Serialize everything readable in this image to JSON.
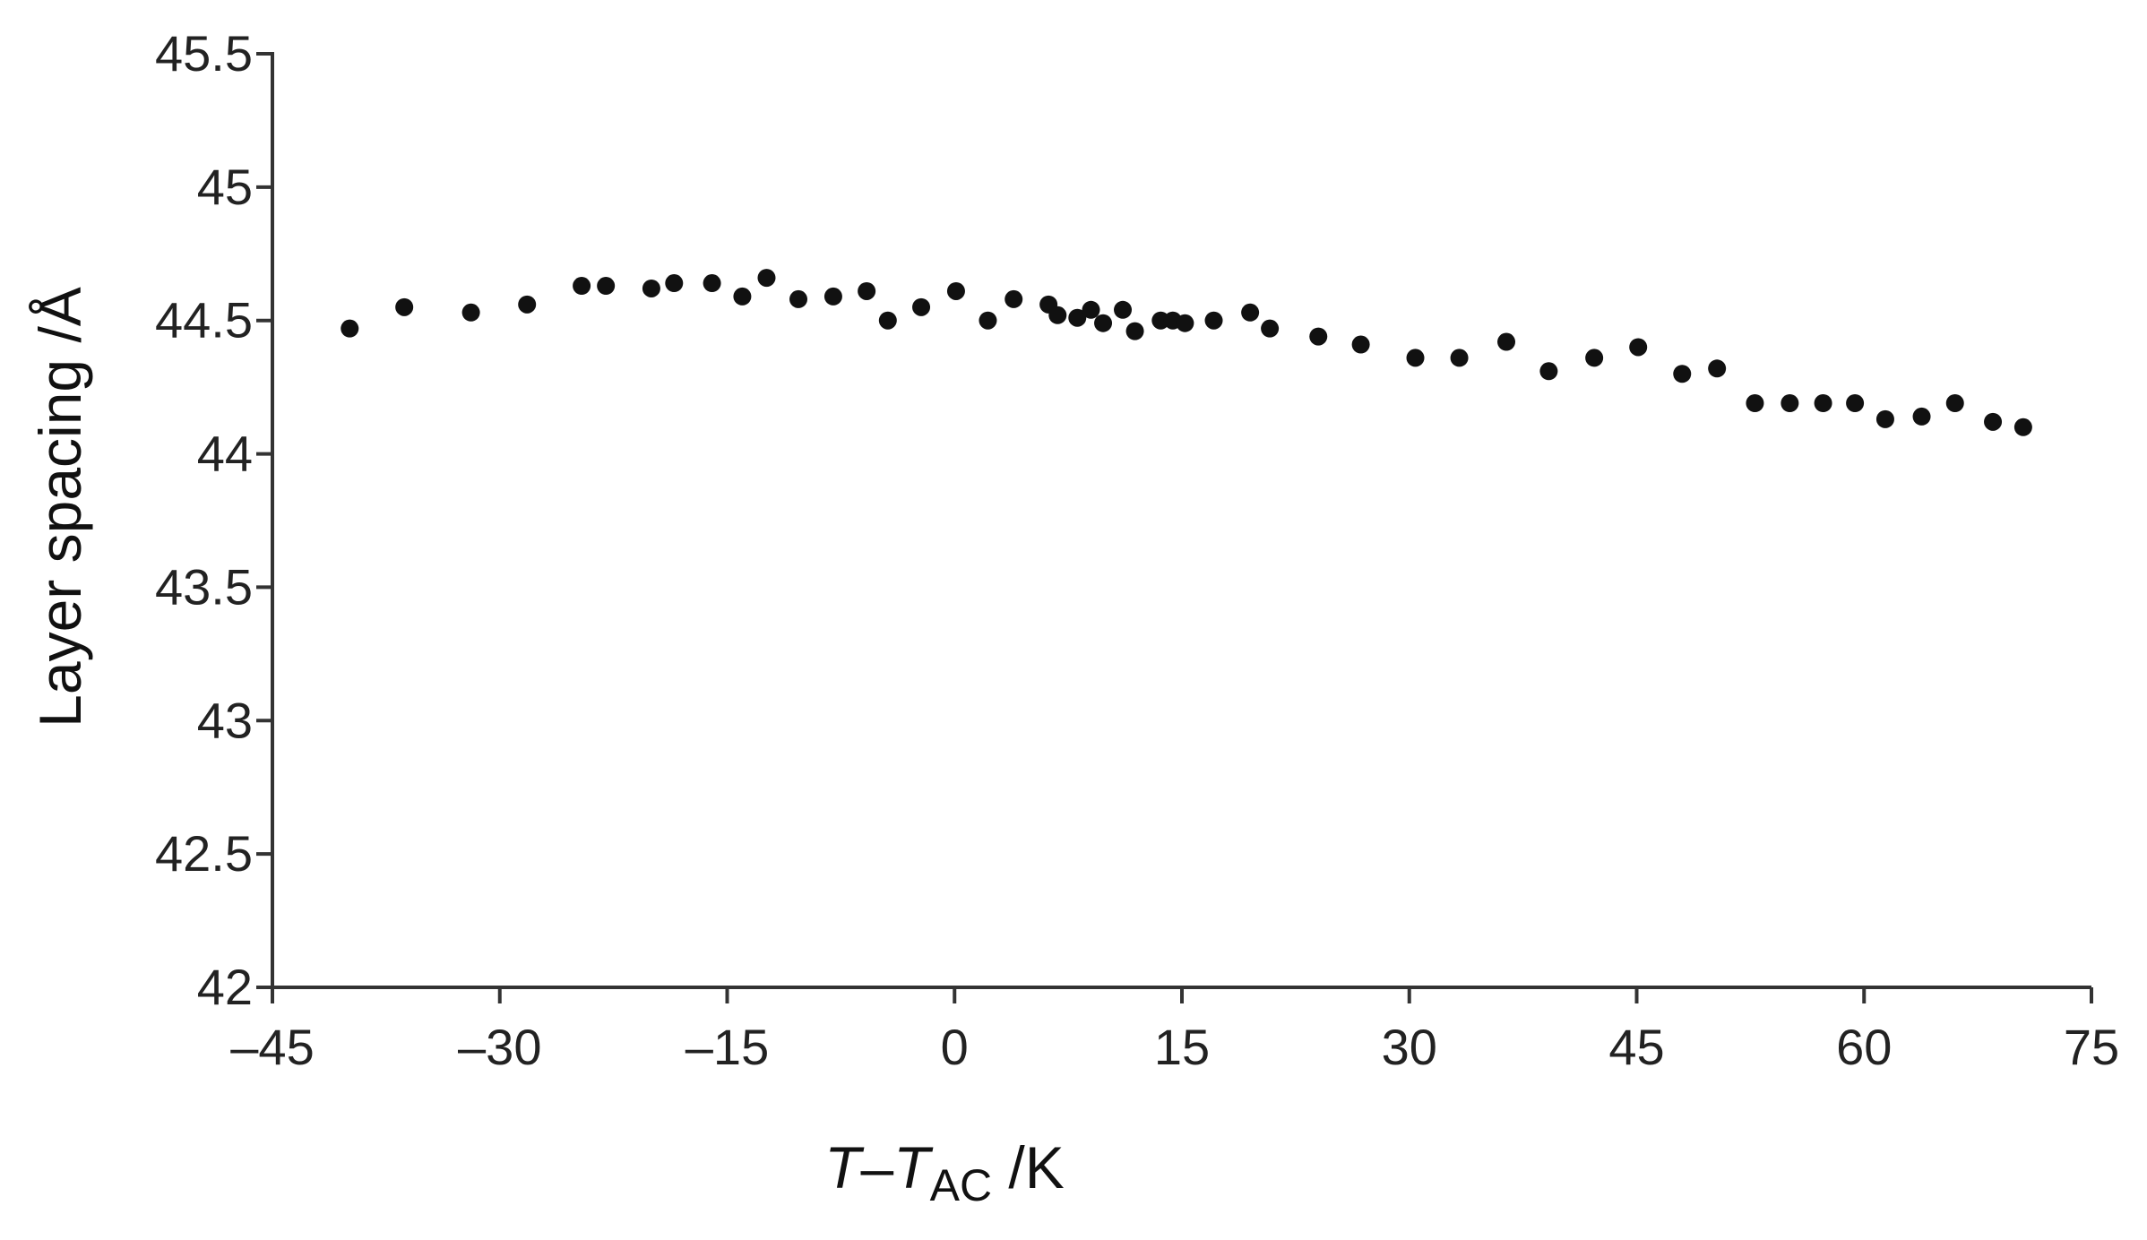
{
  "chart_data": {
    "type": "scatter",
    "title": "",
    "xlabel": {
      "var": "T",
      "dash": "–",
      "var2": "T",
      "sub": "AC",
      "unit": " /K"
    },
    "ylabel": "Layer spacing /Å",
    "xlim": [
      -45,
      75
    ],
    "ylim": [
      42,
      45.5
    ],
    "xticks": [
      "–45",
      "–30",
      "–15",
      "0",
      "15",
      "30",
      "45",
      "60",
      "75"
    ],
    "xtick_values": [
      -45,
      -30,
      -15,
      0,
      15,
      30,
      45,
      60,
      75
    ],
    "yticks": [
      "42",
      "42.5",
      "43",
      "43.5",
      "44",
      "44.5",
      "45",
      "45.5"
    ],
    "ytick_values": [
      42,
      42.5,
      43,
      43.5,
      44,
      44.5,
      45,
      45.5
    ],
    "grid": false,
    "marker_color": "#111111",
    "points": [
      {
        "x": -39.9,
        "y": 44.47
      },
      {
        "x": -36.3,
        "y": 44.55
      },
      {
        "x": -31.9,
        "y": 44.53
      },
      {
        "x": -28.2,
        "y": 44.56
      },
      {
        "x": -24.6,
        "y": 44.63
      },
      {
        "x": -23.0,
        "y": 44.63
      },
      {
        "x": -20.0,
        "y": 44.62
      },
      {
        "x": -18.5,
        "y": 44.64
      },
      {
        "x": -16.0,
        "y": 44.64
      },
      {
        "x": -14.0,
        "y": 44.59
      },
      {
        "x": -12.4,
        "y": 44.66
      },
      {
        "x": -10.3,
        "y": 44.58
      },
      {
        "x": -8.0,
        "y": 44.59
      },
      {
        "x": -5.8,
        "y": 44.61
      },
      {
        "x": -4.4,
        "y": 44.5
      },
      {
        "x": -2.2,
        "y": 44.55
      },
      {
        "x": 0.1,
        "y": 44.61
      },
      {
        "x": 2.2,
        "y": 44.5
      },
      {
        "x": 3.9,
        "y": 44.58
      },
      {
        "x": 6.2,
        "y": 44.56
      },
      {
        "x": 6.8,
        "y": 44.52
      },
      {
        "x": 8.1,
        "y": 44.51
      },
      {
        "x": 9.0,
        "y": 44.54
      },
      {
        "x": 9.8,
        "y": 44.49
      },
      {
        "x": 11.1,
        "y": 44.54
      },
      {
        "x": 11.9,
        "y": 44.46
      },
      {
        "x": 13.6,
        "y": 44.5
      },
      {
        "x": 14.4,
        "y": 44.5
      },
      {
        "x": 15.2,
        "y": 44.49
      },
      {
        "x": 17.1,
        "y": 44.5
      },
      {
        "x": 19.5,
        "y": 44.53
      },
      {
        "x": 20.8,
        "y": 44.47
      },
      {
        "x": 24.0,
        "y": 44.44
      },
      {
        "x": 26.8,
        "y": 44.41
      },
      {
        "x": 30.4,
        "y": 44.36
      },
      {
        "x": 33.3,
        "y": 44.36
      },
      {
        "x": 36.4,
        "y": 44.42
      },
      {
        "x": 39.2,
        "y": 44.31
      },
      {
        "x": 42.2,
        "y": 44.36
      },
      {
        "x": 45.1,
        "y": 44.4
      },
      {
        "x": 48.0,
        "y": 44.3
      },
      {
        "x": 50.3,
        "y": 44.32
      },
      {
        "x": 52.8,
        "y": 44.19
      },
      {
        "x": 55.1,
        "y": 44.19
      },
      {
        "x": 57.3,
        "y": 44.19
      },
      {
        "x": 59.4,
        "y": 44.19
      },
      {
        "x": 61.4,
        "y": 44.13
      },
      {
        "x": 63.8,
        "y": 44.14
      },
      {
        "x": 66.0,
        "y": 44.19
      },
      {
        "x": 68.5,
        "y": 44.12
      },
      {
        "x": 70.5,
        "y": 44.1
      }
    ]
  }
}
